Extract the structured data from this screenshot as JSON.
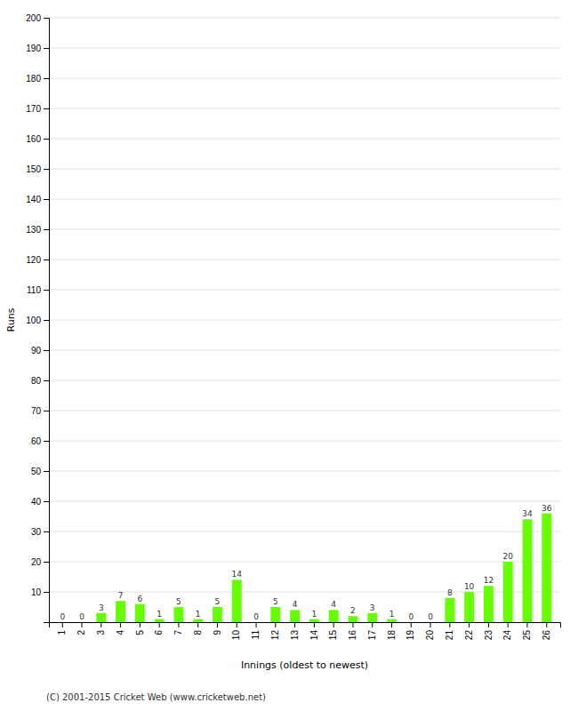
{
  "chart_data": {
    "type": "bar",
    "xlabel": "Innings (oldest to newest)",
    "ylabel": "Runs",
    "categories": [
      "1",
      "2",
      "3",
      "4",
      "5",
      "6",
      "7",
      "8",
      "9",
      "10",
      "11",
      "12",
      "13",
      "14",
      "15",
      "16",
      "17",
      "18",
      "19",
      "20",
      "21",
      "22",
      "23",
      "24",
      "25",
      "26"
    ],
    "values": [
      0,
      0,
      3,
      7,
      6,
      1,
      5,
      1,
      5,
      14,
      0,
      5,
      4,
      1,
      4,
      2,
      3,
      1,
      0,
      0,
      8,
      10,
      12,
      20,
      34,
      36
    ],
    "color": "#66ff00",
    "ylim": [
      0,
      200
    ],
    "yticks": [
      10,
      20,
      30,
      40,
      50,
      60,
      70,
      80,
      90,
      100,
      110,
      120,
      130,
      140,
      150,
      160,
      170,
      180,
      190,
      200
    ],
    "grid": true,
    "data_labels": true,
    "annotations": [
      "(C) 2001-2015 Cricket Web (www.cricketweb.net)"
    ]
  }
}
